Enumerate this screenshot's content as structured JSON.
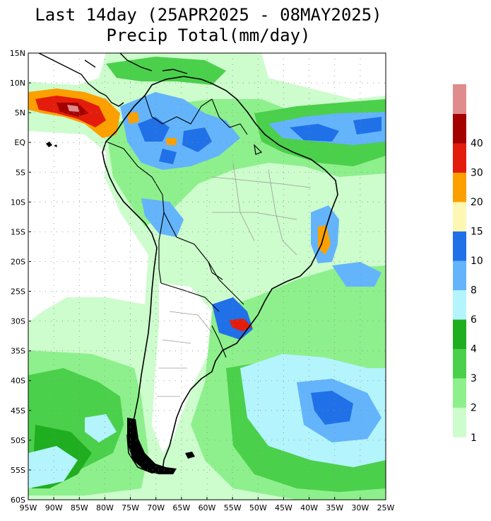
{
  "title": {
    "line1": "Last 14day (25APR2025 - 08MAY2025)",
    "line2": "Precip Total(mm/day)"
  },
  "map": {
    "lon_range": [
      -95,
      -25
    ],
    "lat_range": [
      -60,
      15
    ],
    "lon_tick_labels": [
      "95W",
      "90W",
      "85W",
      "80W",
      "75W",
      "70W",
      "65W",
      "60W",
      "55W",
      "50W",
      "45W",
      "40W",
      "35W",
      "30W",
      "25W"
    ],
    "lat_tick_labels": [
      "15N",
      "10N",
      "5N",
      "EQ",
      "5S",
      "10S",
      "15S",
      "20S",
      "25S",
      "30S",
      "35S",
      "40S",
      "45S",
      "50S",
      "55S",
      "60S"
    ],
    "background_color": "#ffffff",
    "coast_color": "#000000",
    "border_color": "#9a9a9a"
  },
  "colorbar": {
    "labels": [
      "1",
      "2",
      "3",
      "4",
      "6",
      "8",
      "10",
      "15",
      "20",
      "30",
      "40"
    ],
    "colors": [
      "#cdfccd",
      "#8ef08c",
      "#4bd04b",
      "#1fae1f",
      "#b4f4fc",
      "#64b4fc",
      "#2070e8",
      "#fcf8b4",
      "#fca000",
      "#e41c0c",
      "#a40000",
      "#e08c8c"
    ]
  }
}
